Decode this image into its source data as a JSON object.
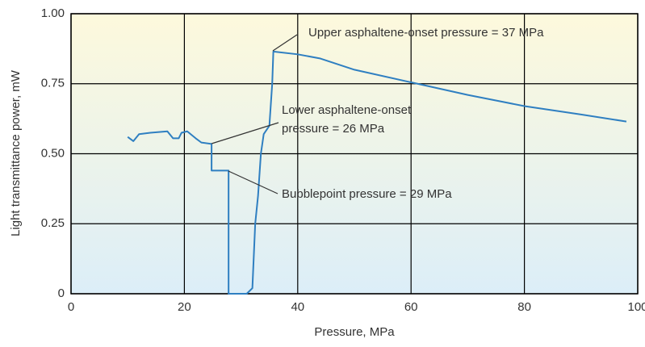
{
  "chart_data": {
    "type": "line",
    "x_label": "Pressure, MPa",
    "y_label": "Light transmittance power, mW",
    "annotations": [
      "Upper asphaltene-onset pressure = 37 MPa",
      "Lower asphaltene-onset",
      "pressure = 26 MPa",
      "Bubblepoint pressure = 29 MPa"
    ],
    "series": [
      {
        "color": "#2f7fc1",
        "x": [
          10,
          11,
          12,
          14,
          17,
          18,
          19,
          19.5,
          20.5,
          22,
          23,
          24.8,
          24.8,
          27.8,
          27.8,
          31,
          32,
          32.5,
          33,
          33.5,
          34,
          35,
          35.5,
          35.7,
          40,
          44,
          50,
          60,
          70,
          80,
          90,
          98
        ],
        "values": [
          0.56,
          0.545,
          0.57,
          0.575,
          0.58,
          0.555,
          0.555,
          0.575,
          0.58,
          0.555,
          0.54,
          0.535,
          0.44,
          0.44,
          0,
          0,
          0.02,
          0.25,
          0.35,
          0.5,
          0.57,
          0.6,
          0.75,
          0.865,
          0.855,
          0.84,
          0.8,
          0.755,
          0.71,
          0.67,
          0.64,
          0.615
        ]
      }
    ],
    "xlim": [
      0,
      100
    ],
    "xticks": [
      0,
      20,
      40,
      60,
      80,
      100
    ],
    "ylim": [
      0,
      1
    ],
    "yticks": [
      0,
      {
        "value": 0.25,
        "label": "0.25"
      },
      {
        "value": 0.5,
        "label": "0.50"
      },
      {
        "value": 0.75,
        "label": "0.75"
      },
      {
        "value": 1,
        "label": "1.00"
      }
    ],
    "grid": true
  }
}
